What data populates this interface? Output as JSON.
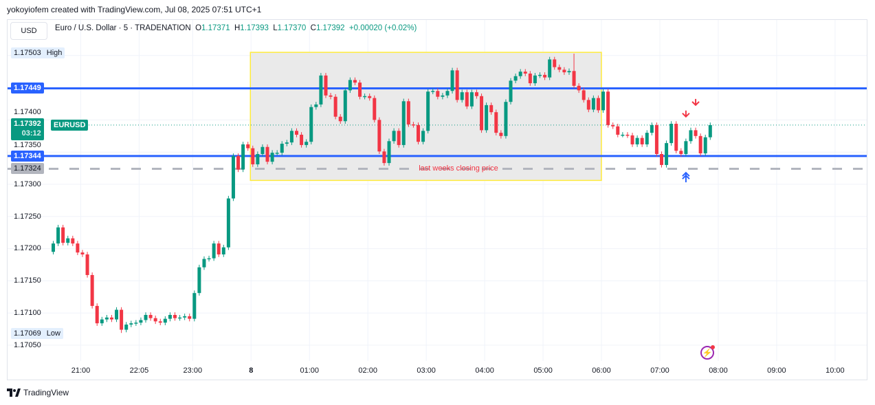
{
  "credit": "yokoyiofem created with TradingView.com, Jul 08, 2025 07:51 UTC+1",
  "currency_button": "USD",
  "legend": {
    "title": "Euro / U.S. Dollar · 5 · TRADENATION",
    "o_label": "O",
    "o": "1.17371",
    "h_label": "H",
    "h": "1.17393",
    "l_label": "L",
    "l": "1.17370",
    "c_label": "C",
    "c": "1.17392",
    "change": "+0.00020 (+0.02%)"
  },
  "price_axis": {
    "ticks": [
      "1.17400",
      "1.17350",
      "1.17300",
      "1.17250",
      "1.17200",
      "1.17150",
      "1.17100",
      "1.17050"
    ],
    "high_value": "1.17503",
    "high_label": "High",
    "low_value": "1.17069",
    "low_label": "Low",
    "resistance_value": "1.17449",
    "support_value": "1.17344",
    "last_week_close_value": "1.17324",
    "current_value": "1.17392",
    "current_symbol": "EURUSD",
    "countdown": "03:12"
  },
  "time_axis": [
    {
      "label": "21:00",
      "index": 6
    },
    {
      "label": "22:05",
      "index": 18
    },
    {
      "label": "23:00",
      "index": 29
    },
    {
      "label": "8",
      "index": 41
    },
    {
      "label": "01:00",
      "index": 53
    },
    {
      "label": "02:00",
      "index": 65
    },
    {
      "label": "03:00",
      "index": 77
    },
    {
      "label": "04:00",
      "index": 89
    },
    {
      "label": "05:00",
      "index": 101
    },
    {
      "label": "06:00",
      "index": 113
    },
    {
      "label": "07:00",
      "index": 125
    },
    {
      "label": "08:00",
      "index": 137
    },
    {
      "label": "09:00",
      "index": 149
    },
    {
      "label": "10:00",
      "index": 161
    }
  ],
  "annotation": {
    "rect_label": "last weeks closing price"
  },
  "colors": {
    "up": "#089981",
    "down": "#f23645",
    "level": "#2962ff",
    "close_line": "#b2b5be",
    "rect_fill": "#e8e8e8",
    "rect_border": "#ffeb3b"
  },
  "footer": {
    "brand": "TradingView"
  },
  "chart_data": {
    "type": "candlestick",
    "symbol": "EURUSD",
    "interval": "5",
    "ylim": [
      1.1702,
      1.1752
    ],
    "open_first": 1.17195,
    "close": [
      1.17208,
      1.17233,
      1.17209,
      1.17216,
      1.17208,
      1.17194,
      1.17191,
      1.17159,
      1.17111,
      1.17084,
      1.1709,
      1.17093,
      1.1709,
      1.17105,
      1.17074,
      1.17082,
      1.17084,
      1.17085,
      1.17089,
      1.17097,
      1.17092,
      1.17087,
      1.17085,
      1.17091,
      1.17097,
      1.17092,
      1.17093,
      1.17095,
      1.17091,
      1.17131,
      1.17171,
      1.17184,
      1.17185,
      1.17208,
      1.17191,
      1.17202,
      1.17278,
      1.17344,
      1.17323,
      1.17362,
      1.17356,
      1.17331,
      1.17347,
      1.17358,
      1.17335,
      1.17349,
      1.17349,
      1.17363,
      1.17365,
      1.17383,
      1.17377,
      1.17361,
      1.17366,
      1.1742,
      1.17424,
      1.17469,
      1.17438,
      1.17436,
      1.17405,
      1.17398,
      1.17446,
      1.17462,
      1.17458,
      1.17436,
      1.17437,
      1.17434,
      1.174,
      1.17351,
      1.17333,
      1.17367,
      1.17383,
      1.17361,
      1.17429,
      1.17393,
      1.17392,
      1.17366,
      1.17383,
      1.17444,
      1.17445,
      1.17436,
      1.17438,
      1.17445,
      1.17477,
      1.17431,
      1.17443,
      1.17421,
      1.17443,
      1.17437,
      1.17384,
      1.17423,
      1.17412,
      1.1738,
      1.17375,
      1.17428,
      1.17461,
      1.17468,
      1.17475,
      1.17472,
      1.17457,
      1.17469,
      1.1747,
      1.17466,
      1.17494,
      1.17482,
      1.17478,
      1.17474,
      1.17476,
      1.17453,
      1.17446,
      1.17431,
      1.17416,
      1.17434,
      1.17415,
      1.17444,
      1.17392,
      1.1739,
      1.17377,
      1.17377,
      1.17376,
      1.17362,
      1.17372,
      1.17362,
      1.1738,
      1.17392,
      1.17347,
      1.1733,
      1.17364,
      1.17394,
      1.17352,
      1.17347,
      1.17367,
      1.17384,
      1.17375,
      1.17348,
      1.17373,
      1.17392
    ],
    "extremes": {
      "high": {
        "index": 107,
        "price": 1.17503
      },
      "low": {
        "index": 14,
        "price": 1.17069
      }
    },
    "levels": [
      {
        "name": "resistance",
        "price": 1.17449,
        "style": "solid"
      },
      {
        "name": "support",
        "price": 1.17344,
        "style": "solid"
      },
      {
        "name": "last-week-close",
        "price": 1.17324,
        "style": "dashed"
      }
    ],
    "rectangle": {
      "from_index": 41,
      "to_index": 112,
      "top": 1.17505,
      "bottom": 1.17306
    },
    "markers": [
      {
        "type": "arrow-down",
        "index": 130,
        "price": 1.17405
      },
      {
        "type": "arrow-down",
        "index": 132,
        "price": 1.17423
      },
      {
        "type": "double-arrow-up",
        "index": 130,
        "price": 1.17318
      }
    ]
  }
}
